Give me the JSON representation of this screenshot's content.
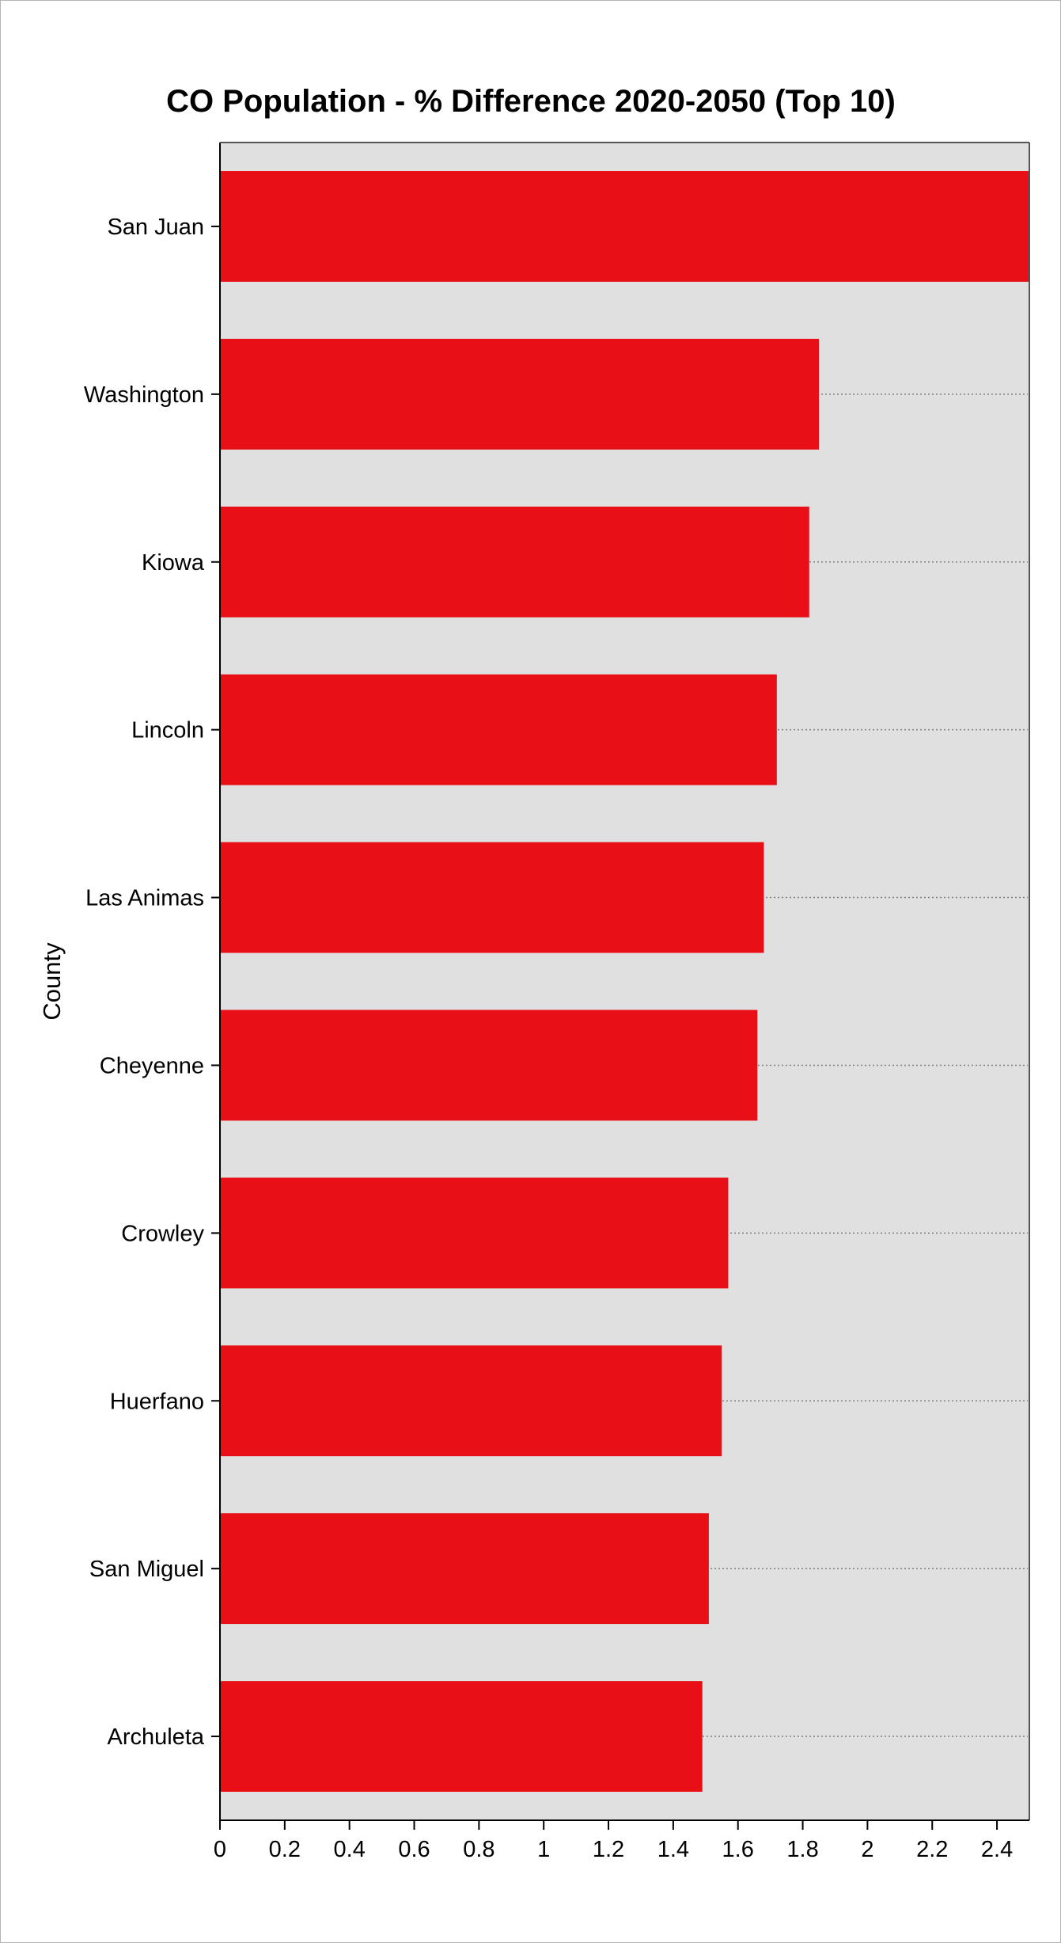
{
  "chart_data": {
    "type": "bar",
    "orientation": "horizontal",
    "title": "CO Population - % Difference 2020-2050 (Top 10)",
    "xlabel": "",
    "ylabel": "County",
    "categories": [
      "San Juan",
      "Washington",
      "Kiowa",
      "Lincoln",
      "Las Animas",
      "Cheyenne",
      "Crowley",
      "Huerfano",
      "San Miguel",
      "Archuleta"
    ],
    "values": [
      2.5,
      1.85,
      1.82,
      1.72,
      1.68,
      1.66,
      1.57,
      1.55,
      1.51,
      1.49
    ],
    "xlim": [
      0,
      2.5
    ],
    "xticks": [
      "0",
      "0.2",
      "0.4",
      "0.6",
      "0.8",
      "1",
      "1.2",
      "1.4",
      "1.6",
      "1.8",
      "2",
      "2.2",
      "2.4"
    ],
    "grid": "horizontal dotted lines at each category",
    "legend": "none",
    "colors": {
      "bar": "#e81016",
      "plot_background": "#e0e0e0",
      "grid": "#808080"
    }
  }
}
